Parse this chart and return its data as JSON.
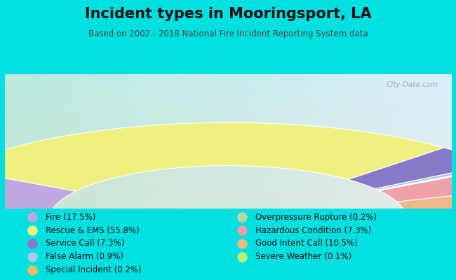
{
  "title": "Incident types in Mooringsport, LA",
  "subtitle": "Based on 2002 - 2018 National Fire Incident Reporting System data",
  "background_color": "#00e0e0",
  "chart_bg_top_left": "#c8e8d0",
  "chart_bg_bottom_right": "#d0e8f0",
  "segments": [
    {
      "label": "Fire (17.5%)",
      "value": 17.5,
      "color": "#c0a8e0"
    },
    {
      "label": "Rescue & EMS (55.8%)",
      "value": 55.8,
      "color": "#f0f080"
    },
    {
      "label": "Service Call (7.3%)",
      "value": 7.3,
      "color": "#8878c8"
    },
    {
      "label": "False Alarm (0.9%)",
      "value": 0.9,
      "color": "#a8c8e8"
    },
    {
      "label": "Special Incident (0.2%)",
      "value": 0.2,
      "color": "#e8c060"
    },
    {
      "label": "Overpressure Rupture (0.2%)",
      "value": 0.2,
      "color": "#b8d8a0"
    },
    {
      "label": "Hazardous Condition (7.3%)",
      "value": 7.3,
      "color": "#f0a0a8"
    },
    {
      "label": "Good Intent Call (10.5%)",
      "value": 10.5,
      "color": "#f0b888"
    },
    {
      "label": "Severe Weather (0.1%)",
      "value": 0.1,
      "color": "#b8f070"
    }
  ],
  "legend_left": [
    {
      "label": "Fire (17.5%)",
      "color": "#c0a8e0"
    },
    {
      "label": "Rescue & EMS (55.8%)",
      "color": "#f0f080"
    },
    {
      "label": "Service Call (7.3%)",
      "color": "#8878c8"
    },
    {
      "label": "False Alarm (0.9%)",
      "color": "#a8c8e8"
    },
    {
      "label": "Special Incident (0.2%)",
      "color": "#e8c060"
    }
  ],
  "legend_right": [
    {
      "label": "Overpressure Rupture (0.2%)",
      "color": "#b8d8a0"
    },
    {
      "label": "Hazardous Condition (7.3%)",
      "color": "#f0a0a8"
    },
    {
      "label": "Good Intent Call (10.5%)",
      "color": "#f0b888"
    },
    {
      "label": "Severe Weather (0.1%)",
      "color": "#b8f070"
    }
  ],
  "watermark": "City-Data.com",
  "title_fontsize": 15,
  "subtitle_fontsize": 8.5,
  "legend_fontsize": 8.5
}
